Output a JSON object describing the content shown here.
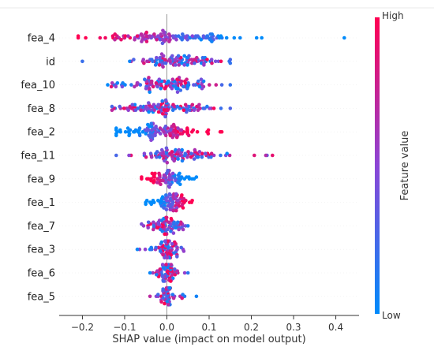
{
  "chart_data": {
    "type": "scatter",
    "subtype": "shap-beeswarm",
    "title": "",
    "xlabel": "SHAP value (impact on model output)",
    "ylabel": "",
    "xlim": [
      -0.255,
      0.455
    ],
    "x_ticks": [
      -0.2,
      -0.1,
      0.0,
      0.1,
      0.2,
      0.3,
      0.4
    ],
    "x_tick_labels": [
      "−0.2",
      "−0.1",
      "0.0",
      "0.1",
      "0.2",
      "0.3",
      "0.4"
    ],
    "grid": false,
    "colorbar": {
      "label": "Feature value",
      "high_label": "High",
      "low_label": "Low",
      "high_color": "#ff0052",
      "low_color": "#008bfb"
    },
    "features": [
      {
        "name": "fea_4",
        "min": -0.21,
        "max": 0.42,
        "center": 0.0,
        "spread": 0.085,
        "density": 110,
        "color_trend": "neg_high"
      },
      {
        "name": "id",
        "min": -0.2,
        "max": 0.15,
        "center": 0.03,
        "spread": 0.05,
        "density": 95,
        "color_trend": "mixed"
      },
      {
        "name": "fea_10",
        "min": -0.14,
        "max": 0.15,
        "center": 0.0,
        "spread": 0.05,
        "density": 105,
        "color_trend": "mixed"
      },
      {
        "name": "fea_8",
        "min": -0.13,
        "max": 0.15,
        "center": -0.01,
        "spread": 0.055,
        "density": 105,
        "color_trend": "mixed"
      },
      {
        "name": "fea_2",
        "min": -0.12,
        "max": 0.13,
        "center": -0.01,
        "spread": 0.045,
        "density": 105,
        "color_trend": "pos_high"
      },
      {
        "name": "fea_11",
        "min": -0.12,
        "max": 0.25,
        "center": 0.01,
        "spread": 0.05,
        "density": 95,
        "color_trend": "mixed"
      },
      {
        "name": "fea_9",
        "min": -0.06,
        "max": 0.07,
        "center": 0.0,
        "spread": 0.025,
        "density": 70,
        "color_trend": "neg_high"
      },
      {
        "name": "fea_1",
        "min": -0.05,
        "max": 0.06,
        "center": 0.015,
        "spread": 0.02,
        "density": 75,
        "color_trend": "pos_high"
      },
      {
        "name": "fea_7",
        "min": -0.06,
        "max": 0.05,
        "center": 0.0,
        "spread": 0.02,
        "density": 70,
        "color_trend": "mixed"
      },
      {
        "name": "fea_3",
        "min": -0.07,
        "max": 0.04,
        "center": 0.0,
        "spread": 0.015,
        "density": 65,
        "color_trend": "mixed"
      },
      {
        "name": "fea_6",
        "min": -0.04,
        "max": 0.05,
        "center": 0.0,
        "spread": 0.012,
        "density": 60,
        "color_trend": "mixed"
      },
      {
        "name": "fea_5",
        "min": -0.04,
        "max": 0.07,
        "center": 0.0,
        "spread": 0.008,
        "density": 50,
        "color_trend": "mixed"
      }
    ]
  }
}
